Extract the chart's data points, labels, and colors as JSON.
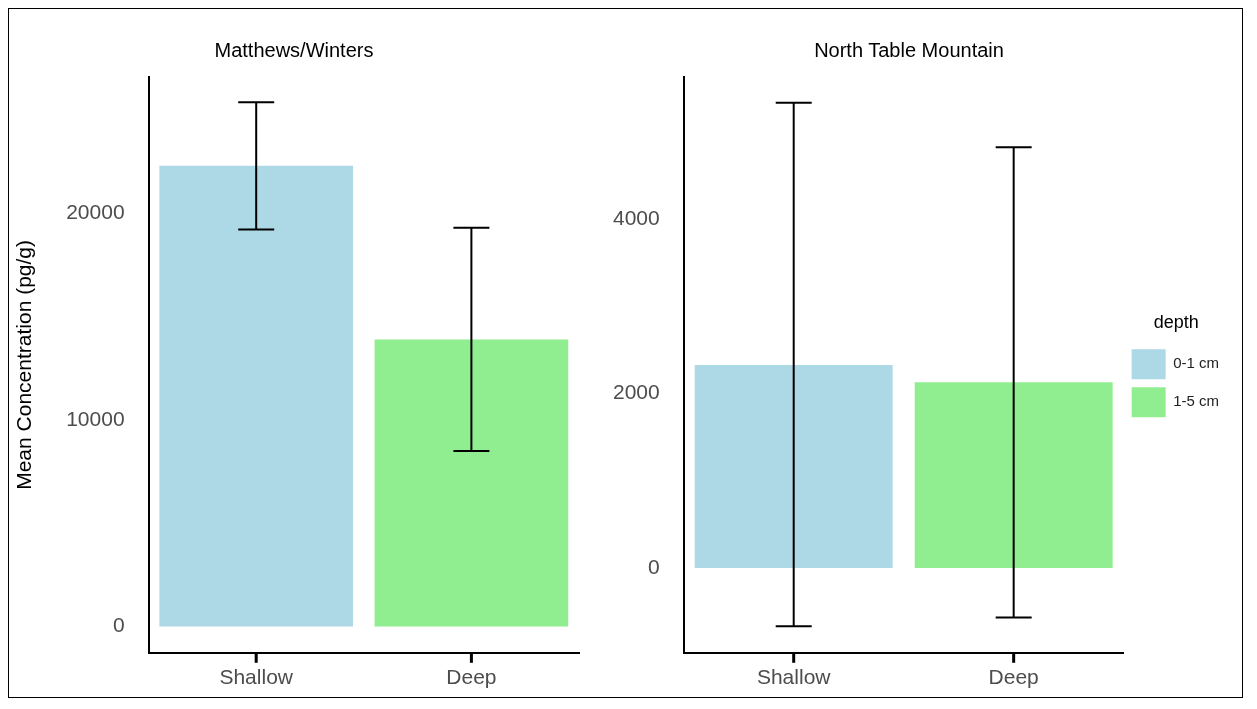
{
  "chart_data": [
    {
      "type": "bar",
      "title": "Matthews/Winters",
      "ylabel": "Mean Concentration (pg/g)",
      "categories": [
        "Shallow",
        "Deep"
      ],
      "series": [
        {
          "color": "#add8e6",
          "values": [
            22300,
            null
          ],
          "errors": [
            [
              19220,
              25380
            ],
            null
          ]
        },
        {
          "color": "#90ee90",
          "values": [
            null,
            13900
          ],
          "errors": [
            null,
            [
              8500,
              19300
            ]
          ]
        }
      ],
      "ylim": [
        -1270,
        26600
      ],
      "yticks": [
        0,
        10000,
        20000
      ],
      "grid": false,
      "legend": false
    },
    {
      "type": "bar",
      "title": "North Table Mountain",
      "categories": [
        "Shallow",
        "Deep"
      ],
      "series": [
        {
          "name": "0-1 cm",
          "color": "#add8e6",
          "values": [
            2330,
            null
          ],
          "errors": [
            [
              -670,
              5340
            ],
            null
          ]
        },
        {
          "name": "1-5 cm",
          "color": "#90ee90",
          "values": [
            null,
            2130
          ],
          "errors": [
            null,
            [
              -570,
              4830
            ]
          ]
        }
      ],
      "ylim": [
        -974,
        5635
      ],
      "yticks": [
        0,
        2000,
        4000
      ],
      "grid": false,
      "legend": "right",
      "legend_title": "depth"
    }
  ]
}
